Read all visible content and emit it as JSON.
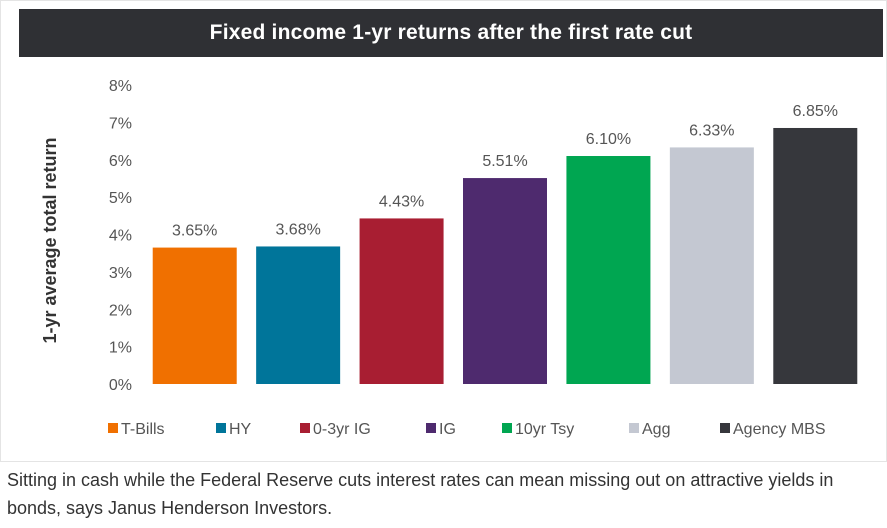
{
  "caption": "Sitting in cash while the Federal Reserve cuts interest rates can mean missing out on attractive yields in bonds, says Janus Henderson Investors.",
  "chart_data": {
    "type": "bar",
    "title": "Fixed income 1-yr returns after the first rate cut",
    "ylabel": "1-yr average total return",
    "xlabel": "",
    "ylim": [
      0,
      8
    ],
    "yticks": [
      0,
      1,
      2,
      3,
      4,
      5,
      6,
      7,
      8
    ],
    "ytick_labels": [
      "0%",
      "1%",
      "2%",
      "3%",
      "4%",
      "5%",
      "6%",
      "7%",
      "8%"
    ],
    "grid": false,
    "legend_position": "bottom",
    "categories": [
      "T-Bills",
      "HY",
      "0-3yr IG",
      "IG",
      "10yr Tsy",
      "Agg",
      "Agency MBS"
    ],
    "values": [
      3.65,
      3.68,
      4.43,
      5.51,
      6.1,
      6.33,
      6.85
    ],
    "value_labels": [
      "3.65%",
      "3.68%",
      "4.43%",
      "5.51%",
      "6.10%",
      "6.33%",
      "6.85%"
    ],
    "colors": [
      "#f07000",
      "#00759a",
      "#a81e32",
      "#4e2a6e",
      "#00a651",
      "#c4c8d2",
      "#36373c"
    ]
  }
}
